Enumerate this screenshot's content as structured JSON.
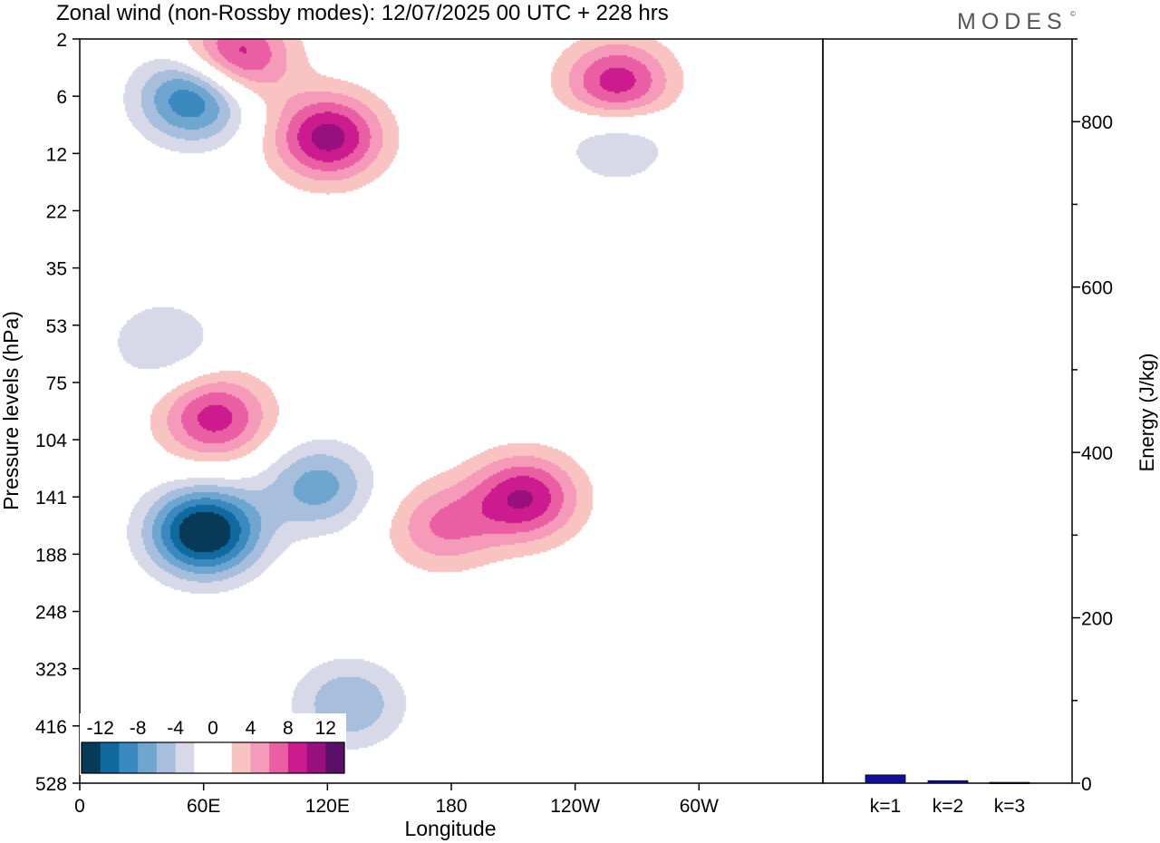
{
  "header": {
    "title": "Zonal wind (non-Rossby modes):  12/07/2025  00 UTC  + 228 hrs",
    "logo_text": "MODES",
    "logo_mark": "©"
  },
  "colors": {
    "neg": [
      "#063a57",
      "#0f6aa0",
      "#3a89bf",
      "#6ea6d0",
      "#a7bfdc",
      "#d7d9e8"
    ],
    "zero": "#ffffff",
    "pos": [
      "#f8c3c1",
      "#f59bb9",
      "#ea5fa3",
      "#cc1b8e",
      "#97107e",
      "#5c0f68"
    ],
    "energy_bar": "#1010a0"
  },
  "chart_data": [
    {
      "type": "heatmap",
      "title": "Zonal wind (non-Rossby modes):  12/07/2025  00 UTC  + 228 hrs",
      "xlabel": "Longitude",
      "ylabel": "Pressure levels (hPa)",
      "x_ticks": [
        "0",
        "60E",
        "120E",
        "180",
        "120W",
        "60W"
      ],
      "x_tick_degrees": [
        0,
        60,
        120,
        180,
        240,
        300
      ],
      "xlim": [
        0,
        360
      ],
      "y_ticks": [
        "2",
        "6",
        "12",
        "22",
        "35",
        "53",
        "75",
        "104",
        "141",
        "188",
        "248",
        "323",
        "416",
        "528"
      ],
      "colorbar_ticks": [
        "-12",
        "-8",
        "-4",
        "0",
        "4",
        "8",
        "12"
      ],
      "colorbar_levels": [
        -14,
        -12,
        -10,
        -8,
        -6,
        -4,
        -2,
        2,
        4,
        6,
        8,
        10,
        12,
        14
      ],
      "features": [
        {
          "lon": 60,
          "level_index": 8.6,
          "value": -15
        },
        {
          "lon": 55,
          "level_index": 1.0,
          "value": -11
        },
        {
          "lon": 75,
          "level_index": 0.3,
          "value": 10
        },
        {
          "lon": 120,
          "level_index": 1.7,
          "value": 11
        },
        {
          "lon": 260,
          "level_index": 0.8,
          "value": 10
        },
        {
          "lon": 215,
          "level_index": 8.0,
          "value": 10
        },
        {
          "lon": 65,
          "level_index": 6.6,
          "value": 9
        },
        {
          "lon": 175,
          "level_index": 8.5,
          "value": 6
        },
        {
          "lon": 130,
          "level_index": 11.6,
          "value": -6
        },
        {
          "lon": 115,
          "level_index": 7.8,
          "value": -7
        },
        {
          "lon": 260,
          "level_index": 1.7,
          "value": -5
        },
        {
          "lon": 40,
          "level_index": 5.3,
          "value": -4
        }
      ]
    },
    {
      "type": "bar",
      "ylabel": "Energy (J/kg)",
      "categories": [
        "k=1",
        "k=2",
        "k=3"
      ],
      "values": [
        10,
        3,
        1
      ],
      "ylim": [
        0,
        900
      ],
      "y_ticks": [
        "0",
        "200",
        "400",
        "600",
        "800"
      ],
      "y_tick_values": [
        0,
        200,
        400,
        600,
        800
      ]
    }
  ]
}
